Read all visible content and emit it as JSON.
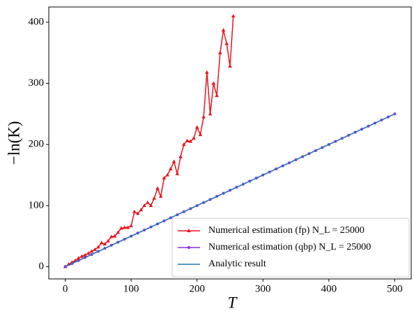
{
  "chart_data": {
    "type": "line",
    "xlabel": "T",
    "ylabel": "−ln(K)",
    "xlim": [
      -25,
      525
    ],
    "ylim": [
      -20,
      425
    ],
    "xticks": [
      0,
      100,
      200,
      300,
      400,
      500
    ],
    "yticks": [
      0,
      100,
      200,
      300,
      400
    ],
    "grid": false,
    "legend": "lower right",
    "series": [
      {
        "name": "Numerical estimation (fp) N_L = 25000",
        "color": "#e8141c",
        "marker": "triangle",
        "x": [
          0,
          5,
          10,
          15,
          20,
          25,
          30,
          35,
          40,
          45,
          50,
          55,
          60,
          65,
          70,
          75,
          80,
          85,
          90,
          95,
          100,
          105,
          110,
          115,
          120,
          125,
          130,
          135,
          140,
          145,
          150,
          155,
          160,
          165,
          170,
          175,
          180,
          185,
          190,
          195,
          200,
          205,
          210,
          215,
          220,
          225,
          230,
          235,
          240,
          245,
          250,
          255
        ],
        "values": [
          0,
          4,
          7,
          10,
          14,
          17,
          19,
          22,
          25,
          28,
          32,
          39,
          37,
          42,
          49,
          50,
          56,
          63,
          64,
          64,
          67,
          90,
          87,
          93,
          100,
          105,
          100,
          112,
          128,
          115,
          145,
          150,
          160,
          172,
          152,
          180,
          200,
          206,
          205,
          210,
          228,
          216,
          245,
          318,
          250,
          300,
          280,
          350,
          387,
          365,
          328,
          410
        ]
      },
      {
        "name": "Numerical estimation (qbp) N_L = 25000",
        "color": "#8a2be2",
        "marker": "circle",
        "x": [
          0,
          10,
          20,
          30,
          40,
          50,
          60,
          70,
          80,
          90,
          100,
          110,
          120,
          130,
          140,
          150,
          160,
          170,
          180,
          190,
          200,
          210,
          220,
          230,
          240,
          250,
          260,
          270,
          280,
          290,
          300,
          310,
          320,
          330,
          340,
          350,
          360,
          370,
          380,
          390,
          400,
          410,
          420,
          430,
          440,
          450,
          460,
          470,
          480,
          490,
          500
        ],
        "values": [
          0,
          5,
          10,
          15,
          20,
          25,
          30,
          35,
          40,
          45,
          50,
          55,
          60,
          65,
          70,
          75,
          80,
          85,
          90,
          95,
          100,
          105,
          110,
          115,
          120,
          125,
          130,
          135,
          140,
          145,
          150,
          155,
          160,
          165,
          170,
          175,
          180,
          185,
          190,
          195,
          200,
          205,
          210,
          215,
          220,
          225,
          230,
          235,
          240,
          245,
          250
        ]
      },
      {
        "name": "Analytic result",
        "color": "#1f77b4",
        "x": [
          0,
          500
        ],
        "values": [
          0,
          250
        ]
      }
    ]
  }
}
